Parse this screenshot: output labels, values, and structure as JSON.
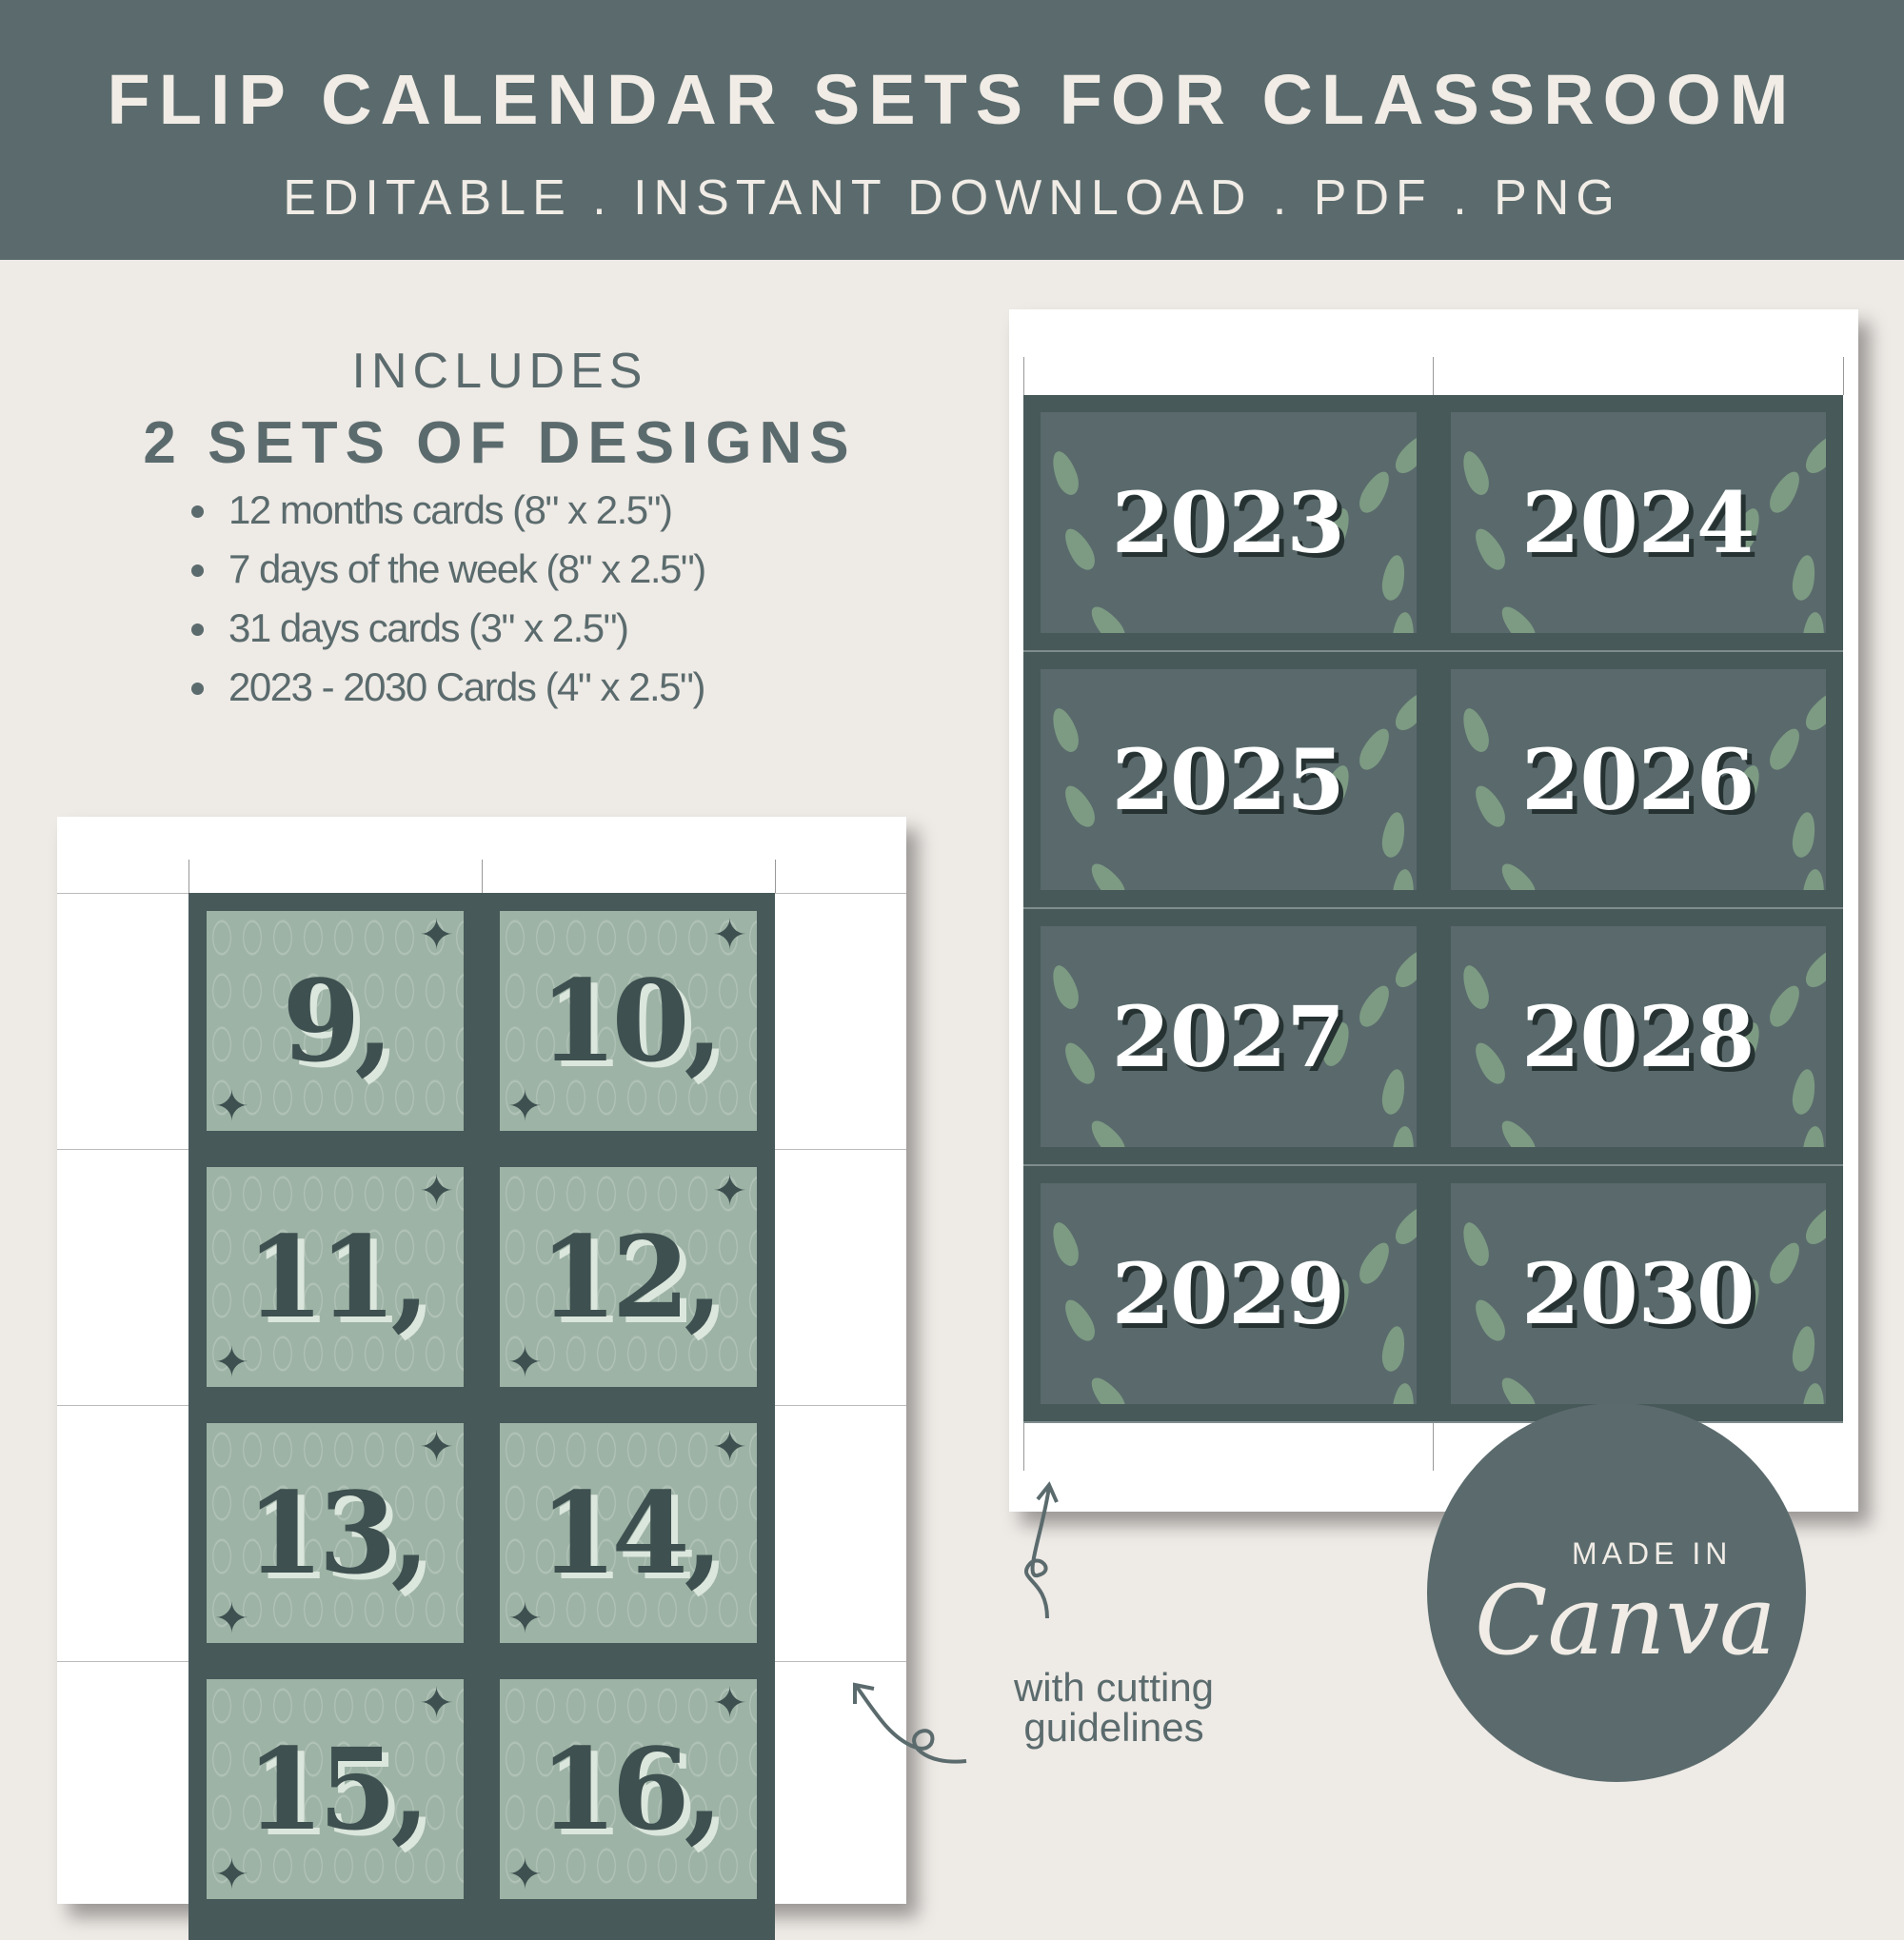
{
  "header": {
    "title": "FLIP CALENDAR SETS FOR CLASSROOM",
    "subtitle": "EDITABLE . INSTANT DOWNLOAD . PDF . PNG"
  },
  "includes": {
    "label": "INCLUDES",
    "heading": "2 SETS OF DESIGNS",
    "items": [
      "12 months cards (8\" x 2.5\")",
      "7 days of the week (8\" x 2.5\")",
      "31 days cards (3\" x 2.5\")",
      "2023 - 2030 Cards (4\" x 2.5\")"
    ]
  },
  "year_cards": [
    "2023",
    "2024",
    "2025",
    "2026",
    "2027",
    "2028",
    "2029",
    "2030"
  ],
  "day_cards": [
    "9,",
    "10,",
    "11,",
    "12,",
    "13,",
    "14,",
    "15,",
    "16,"
  ],
  "annotation": {
    "line1": "with cutting",
    "line2": "guidelines"
  },
  "badge": {
    "made_in": "MADE IN",
    "brand": "Canva"
  },
  "colors": {
    "primary": "#5b6b6d",
    "background": "#eeeae6",
    "card_dark": "#48595a",
    "card_sage": "#9db3a5"
  }
}
